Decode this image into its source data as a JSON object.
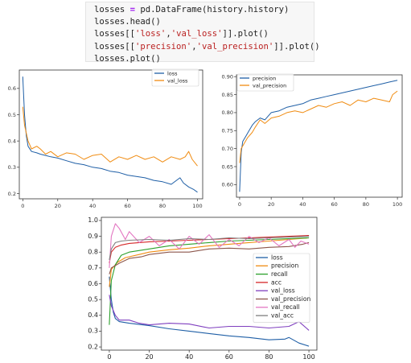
{
  "code": {
    "lines": [
      [
        {
          "t": "losses ",
          "k": "plain"
        },
        {
          "t": "=",
          "k": "eq"
        },
        {
          "t": " pd.DataFrame(history.history)",
          "k": "plain"
        }
      ],
      [
        {
          "t": "losses.head()",
          "k": "plain"
        }
      ],
      [
        {
          "t": "losses[[",
          "k": "plain"
        },
        {
          "t": "'loss'",
          "k": "str"
        },
        {
          "t": ",",
          "k": "plain"
        },
        {
          "t": "'val_loss'",
          "k": "str"
        },
        {
          "t": "]].plot()",
          "k": "plain"
        }
      ],
      [
        {
          "t": "losses[[",
          "k": "plain"
        },
        {
          "t": "'precision'",
          "k": "str"
        },
        {
          "t": ",",
          "k": "plain"
        },
        {
          "t": "'val_precision'",
          "k": "str"
        },
        {
          "t": "]].plot()",
          "k": "plain"
        }
      ],
      [
        {
          "t": "losses.plot()",
          "k": "plain"
        }
      ]
    ]
  },
  "chart_data": [
    {
      "type": "line",
      "title": "",
      "xlabel": "",
      "ylabel": "",
      "xlim": [
        -2,
        103
      ],
      "ylim": [
        0.18,
        0.67
      ],
      "xticks": [
        0,
        20,
        40,
        60,
        80,
        100
      ],
      "yticks": [
        0.2,
        0.3,
        0.4,
        0.5,
        0.6
      ],
      "legend_position": "top-right",
      "grid": false,
      "series": [
        {
          "name": "loss",
          "color": "#1f5fa6",
          "values": [
            [
              0,
              0.645
            ],
            [
              1,
              0.5
            ],
            [
              2,
              0.42
            ],
            [
              3,
              0.38
            ],
            [
              5,
              0.36
            ],
            [
              8,
              0.355
            ],
            [
              10,
              0.35
            ],
            [
              13,
              0.345
            ],
            [
              16,
              0.34
            ],
            [
              20,
              0.335
            ],
            [
              25,
              0.325
            ],
            [
              30,
              0.315
            ],
            [
              35,
              0.31
            ],
            [
              40,
              0.3
            ],
            [
              45,
              0.295
            ],
            [
              50,
              0.285
            ],
            [
              55,
              0.28
            ],
            [
              60,
              0.27
            ],
            [
              65,
              0.265
            ],
            [
              70,
              0.26
            ],
            [
              75,
              0.25
            ],
            [
              80,
              0.245
            ],
            [
              85,
              0.235
            ],
            [
              88,
              0.25
            ],
            [
              90,
              0.26
            ],
            [
              92,
              0.24
            ],
            [
              95,
              0.225
            ],
            [
              98,
              0.215
            ],
            [
              100,
              0.205
            ]
          ]
        },
        {
          "name": "val_loss",
          "color": "#f08c12",
          "values": [
            [
              0,
              0.53
            ],
            [
              1,
              0.46
            ],
            [
              3,
              0.4
            ],
            [
              5,
              0.37
            ],
            [
              8,
              0.38
            ],
            [
              10,
              0.37
            ],
            [
              13,
              0.35
            ],
            [
              16,
              0.36
            ],
            [
              20,
              0.34
            ],
            [
              25,
              0.355
            ],
            [
              30,
              0.35
            ],
            [
              35,
              0.33
            ],
            [
              40,
              0.345
            ],
            [
              45,
              0.35
            ],
            [
              50,
              0.32
            ],
            [
              55,
              0.34
            ],
            [
              60,
              0.33
            ],
            [
              65,
              0.345
            ],
            [
              70,
              0.33
            ],
            [
              75,
              0.34
            ],
            [
              80,
              0.32
            ],
            [
              85,
              0.34
            ],
            [
              90,
              0.33
            ],
            [
              93,
              0.34
            ],
            [
              95,
              0.36
            ],
            [
              97,
              0.33
            ],
            [
              100,
              0.305
            ]
          ]
        }
      ]
    },
    {
      "type": "line",
      "title": "",
      "xlabel": "",
      "ylabel": "",
      "xlim": [
        -2,
        103
      ],
      "ylim": [
        0.565,
        0.905
      ],
      "xticks": [
        0,
        20,
        40,
        60,
        80,
        100
      ],
      "yticks": [
        0.6,
        0.65,
        0.7,
        0.75,
        0.8,
        0.85,
        0.9
      ],
      "legend_position": "top-left",
      "grid": false,
      "series": [
        {
          "name": "precision",
          "color": "#1f5fa6",
          "values": [
            [
              0,
              0.58
            ],
            [
              1,
              0.69
            ],
            [
              2,
              0.72
            ],
            [
              4,
              0.735
            ],
            [
              6,
              0.75
            ],
            [
              8,
              0.765
            ],
            [
              10,
              0.775
            ],
            [
              13,
              0.785
            ],
            [
              16,
              0.78
            ],
            [
              20,
              0.8
            ],
            [
              25,
              0.805
            ],
            [
              30,
              0.815
            ],
            [
              35,
              0.82
            ],
            [
              40,
              0.825
            ],
            [
              45,
              0.835
            ],
            [
              50,
              0.84
            ],
            [
              55,
              0.845
            ],
            [
              60,
              0.85
            ],
            [
              65,
              0.855
            ],
            [
              70,
              0.86
            ],
            [
              75,
              0.865
            ],
            [
              80,
              0.87
            ],
            [
              85,
              0.875
            ],
            [
              90,
              0.88
            ],
            [
              95,
              0.885
            ],
            [
              100,
              0.89
            ]
          ]
        },
        {
          "name": "val_precision",
          "color": "#f08c12",
          "values": [
            [
              0,
              0.66
            ],
            [
              1,
              0.7
            ],
            [
              3,
              0.715
            ],
            [
              5,
              0.73
            ],
            [
              8,
              0.745
            ],
            [
              10,
              0.76
            ],
            [
              13,
              0.78
            ],
            [
              16,
              0.77
            ],
            [
              20,
              0.785
            ],
            [
              25,
              0.79
            ],
            [
              30,
              0.8
            ],
            [
              35,
              0.805
            ],
            [
              40,
              0.8
            ],
            [
              45,
              0.81
            ],
            [
              50,
              0.82
            ],
            [
              55,
              0.815
            ],
            [
              60,
              0.825
            ],
            [
              65,
              0.83
            ],
            [
              70,
              0.82
            ],
            [
              75,
              0.835
            ],
            [
              80,
              0.83
            ],
            [
              85,
              0.84
            ],
            [
              90,
              0.835
            ],
            [
              95,
              0.83
            ],
            [
              97,
              0.85
            ],
            [
              100,
              0.86
            ]
          ]
        }
      ]
    },
    {
      "type": "line",
      "title": "",
      "xlabel": "",
      "ylabel": "",
      "xlim": [
        -4,
        104
      ],
      "ylim": [
        0.18,
        1.02
      ],
      "xticks": [
        0,
        20,
        40,
        60,
        80,
        100
      ],
      "yticks": [
        0.2,
        0.3,
        0.4,
        0.5,
        0.6,
        0.7,
        0.8,
        0.9,
        1.0
      ],
      "ytick_labels": [
        "0.2",
        "0.3",
        "0.4",
        "0.5",
        "0.6",
        "0.7",
        "0.8",
        "0.9",
        "1.0"
      ],
      "legend_position": "right",
      "grid": false,
      "series": [
        {
          "name": "loss",
          "color": "#1f5fa6",
          "values": [
            [
              0,
              0.645
            ],
            [
              1,
              0.5
            ],
            [
              2,
              0.42
            ],
            [
              3,
              0.38
            ],
            [
              5,
              0.36
            ],
            [
              10,
              0.35
            ],
            [
              20,
              0.335
            ],
            [
              30,
              0.315
            ],
            [
              40,
              0.3
            ],
            [
              50,
              0.285
            ],
            [
              60,
              0.27
            ],
            [
              70,
              0.26
            ],
            [
              80,
              0.245
            ],
            [
              88,
              0.25
            ],
            [
              90,
              0.26
            ],
            [
              95,
              0.225
            ],
            [
              100,
              0.205
            ]
          ]
        },
        {
          "name": "precision",
          "color": "#f08c12",
          "values": [
            [
              0,
              0.58
            ],
            [
              1,
              0.69
            ],
            [
              4,
              0.735
            ],
            [
              8,
              0.765
            ],
            [
              15,
              0.785
            ],
            [
              20,
              0.8
            ],
            [
              30,
              0.815
            ],
            [
              40,
              0.825
            ],
            [
              50,
              0.84
            ],
            [
              60,
              0.85
            ],
            [
              70,
              0.86
            ],
            [
              80,
              0.87
            ],
            [
              90,
              0.88
            ],
            [
              100,
              0.89
            ]
          ]
        },
        {
          "name": "recall",
          "color": "#2ca02c",
          "values": [
            [
              0,
              0.34
            ],
            [
              1,
              0.62
            ],
            [
              3,
              0.72
            ],
            [
              6,
              0.78
            ],
            [
              10,
              0.8
            ],
            [
              20,
              0.82
            ],
            [
              30,
              0.84
            ],
            [
              40,
              0.85
            ],
            [
              50,
              0.86
            ],
            [
              60,
              0.87
            ],
            [
              70,
              0.875
            ],
            [
              80,
              0.88
            ],
            [
              90,
              0.885
            ],
            [
              100,
              0.89
            ]
          ]
        },
        {
          "name": "acc",
          "color": "#d62728",
          "values": [
            [
              0,
              0.73
            ],
            [
              1,
              0.8
            ],
            [
              3,
              0.83
            ],
            [
              6,
              0.845
            ],
            [
              10,
              0.855
            ],
            [
              20,
              0.865
            ],
            [
              30,
              0.87
            ],
            [
              40,
              0.875
            ],
            [
              50,
              0.88
            ],
            [
              60,
              0.885
            ],
            [
              70,
              0.89
            ],
            [
              80,
              0.895
            ],
            [
              90,
              0.9
            ],
            [
              100,
              0.905
            ]
          ]
        },
        {
          "name": "val_loss",
          "color": "#7f3fbf",
          "values": [
            [
              0,
              0.53
            ],
            [
              1,
              0.46
            ],
            [
              3,
              0.4
            ],
            [
              5,
              0.37
            ],
            [
              10,
              0.37
            ],
            [
              15,
              0.35
            ],
            [
              20,
              0.34
            ],
            [
              30,
              0.35
            ],
            [
              40,
              0.345
            ],
            [
              50,
              0.32
            ],
            [
              60,
              0.33
            ],
            [
              70,
              0.33
            ],
            [
              80,
              0.32
            ],
            [
              90,
              0.33
            ],
            [
              95,
              0.36
            ],
            [
              100,
              0.305
            ]
          ]
        },
        {
          "name": "val_precision",
          "color": "#8c564b",
          "values": [
            [
              0,
              0.66
            ],
            [
              1,
              0.7
            ],
            [
              5,
              0.73
            ],
            [
              10,
              0.76
            ],
            [
              16,
              0.77
            ],
            [
              20,
              0.785
            ],
            [
              30,
              0.8
            ],
            [
              40,
              0.8
            ],
            [
              50,
              0.82
            ],
            [
              60,
              0.825
            ],
            [
              70,
              0.82
            ],
            [
              80,
              0.83
            ],
            [
              90,
              0.835
            ],
            [
              97,
              0.85
            ],
            [
              100,
              0.86
            ]
          ]
        },
        {
          "name": "val_recall",
          "color": "#e377c2",
          "values": [
            [
              0,
              0.7
            ],
            [
              1,
              0.9
            ],
            [
              3,
              0.98
            ],
            [
              5,
              0.95
            ],
            [
              8,
              0.88
            ],
            [
              10,
              0.93
            ],
            [
              15,
              0.86
            ],
            [
              20,
              0.9
            ],
            [
              25,
              0.84
            ],
            [
              30,
              0.88
            ],
            [
              35,
              0.82
            ],
            [
              40,
              0.9
            ],
            [
              45,
              0.85
            ],
            [
              50,
              0.91
            ],
            [
              55,
              0.83
            ],
            [
              60,
              0.88
            ],
            [
              65,
              0.84
            ],
            [
              70,
              0.9
            ],
            [
              75,
              0.86
            ],
            [
              80,
              0.89
            ],
            [
              85,
              0.84
            ],
            [
              90,
              0.88
            ],
            [
              93,
              0.83
            ],
            [
              96,
              0.87
            ],
            [
              100,
              0.85
            ]
          ]
        },
        {
          "name": "val_acc",
          "color": "#7f7f7f",
          "values": [
            [
              0,
              0.75
            ],
            [
              1,
              0.82
            ],
            [
              3,
              0.86
            ],
            [
              6,
              0.87
            ],
            [
              10,
              0.875
            ],
            [
              20,
              0.88
            ],
            [
              30,
              0.875
            ],
            [
              40,
              0.885
            ],
            [
              50,
              0.88
            ],
            [
              60,
              0.89
            ],
            [
              70,
              0.885
            ],
            [
              80,
              0.89
            ],
            [
              90,
              0.895
            ],
            [
              100,
              0.9
            ]
          ]
        }
      ]
    }
  ]
}
